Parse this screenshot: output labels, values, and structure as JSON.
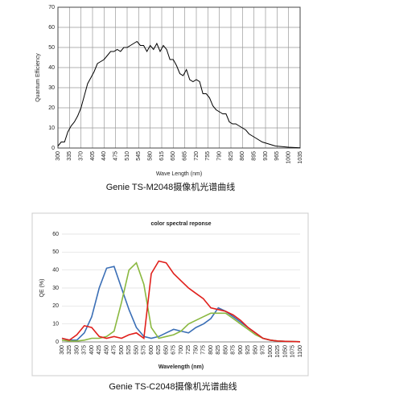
{
  "chart_data": [
    {
      "type": "line",
      "ylabel": "Quantum Efficiency",
      "xlabel": "Wave Length (nm)",
      "caption": "Genie TS-M2048摄像机光谱曲线",
      "x": [
        300,
        310,
        320,
        330,
        340,
        350,
        360,
        370,
        380,
        390,
        400,
        410,
        420,
        430,
        440,
        450,
        460,
        470,
        480,
        490,
        500,
        510,
        520,
        530,
        540,
        550,
        560,
        570,
        580,
        590,
        600,
        610,
        620,
        630,
        640,
        650,
        660,
        670,
        680,
        690,
        700,
        710,
        720,
        730,
        740,
        750,
        760,
        770,
        780,
        790,
        800,
        810,
        820,
        830,
        840,
        850,
        860,
        870,
        880,
        890,
        900,
        920,
        940,
        960,
        980,
        1000,
        1035
      ],
      "values": [
        1,
        3,
        3,
        8,
        11,
        13,
        16,
        20,
        26,
        32,
        35,
        38,
        42,
        43,
        44,
        46,
        48,
        48,
        49,
        48,
        50,
        50,
        51,
        52,
        53,
        51,
        51,
        48,
        51,
        49,
        52,
        48,
        51,
        49,
        44,
        44,
        41,
        37,
        36,
        39,
        34,
        33,
        34,
        33,
        27,
        27,
        25,
        21,
        19,
        18,
        17,
        17,
        13,
        12,
        12,
        11,
        10,
        9,
        7,
        6,
        5,
        3,
        2,
        1,
        0.7,
        0.4,
        0.1
      ],
      "color": "#000000",
      "xlim": [
        300,
        1035
      ],
      "xticks": [
        300,
        335,
        370,
        405,
        440,
        475,
        510,
        545,
        580,
        615,
        650,
        685,
        720,
        755,
        790,
        825,
        860,
        895,
        930,
        965,
        1000,
        1035
      ],
      "ylim": [
        0,
        70
      ],
      "yticks": [
        0,
        10,
        20,
        30,
        40,
        50,
        60,
        70
      ],
      "grid": "both"
    },
    {
      "type": "line",
      "title": "color spectral reponse",
      "ylabel": "QE (%)",
      "xlabel": "Wavelength (nm)",
      "caption": "Genie TS-C2048摄像机光谱曲线",
      "x": [
        300,
        325,
        350,
        375,
        400,
        425,
        450,
        475,
        500,
        525,
        550,
        575,
        600,
        625,
        650,
        675,
        700,
        725,
        750,
        775,
        800,
        825,
        850,
        875,
        900,
        925,
        950,
        975,
        1000,
        1025,
        1050,
        1075,
        1100
      ],
      "series": [
        {
          "color": "#3b6fb6",
          "values": [
            2,
            1,
            1,
            5,
            14,
            30,
            41,
            42,
            30,
            18,
            8,
            3,
            2,
            3,
            5,
            7,
            6,
            5,
            8,
            10,
            13,
            19,
            17,
            14,
            11,
            8,
            5,
            2,
            1,
            0.5,
            0.3,
            0.2,
            0.1
          ]
        },
        {
          "color": "#8ab840",
          "values": [
            1,
            0.5,
            0.5,
            1,
            2,
            2,
            3,
            6,
            22,
            40,
            44,
            32,
            8,
            2,
            3,
            4,
            6,
            10,
            12,
            14,
            16,
            16,
            16,
            13,
            10,
            7,
            4,
            2,
            1,
            0.5,
            0.3,
            0.2,
            0.1
          ]
        },
        {
          "color": "#e0201c",
          "values": [
            2,
            1,
            4,
            9,
            8,
            3,
            2,
            3,
            2,
            4,
            5,
            2,
            38,
            45,
            44,
            38,
            34,
            30,
            27,
            24,
            19,
            18,
            17,
            15,
            12,
            8,
            5,
            2,
            1,
            0.5,
            0.3,
            0.2,
            0.1
          ]
        }
      ],
      "xlim": [
        300,
        1100
      ],
      "xticks": [
        300,
        325,
        350,
        375,
        400,
        425,
        450,
        475,
        500,
        525,
        550,
        575,
        600,
        625,
        650,
        675,
        700,
        725,
        750,
        775,
        800,
        825,
        850,
        875,
        900,
        925,
        950,
        975,
        1000,
        1025,
        1050,
        1075,
        1100
      ],
      "ylim": [
        0,
        60
      ],
      "yticks": [
        0,
        10,
        20,
        30,
        40,
        50,
        60
      ],
      "grid": "y"
    }
  ]
}
